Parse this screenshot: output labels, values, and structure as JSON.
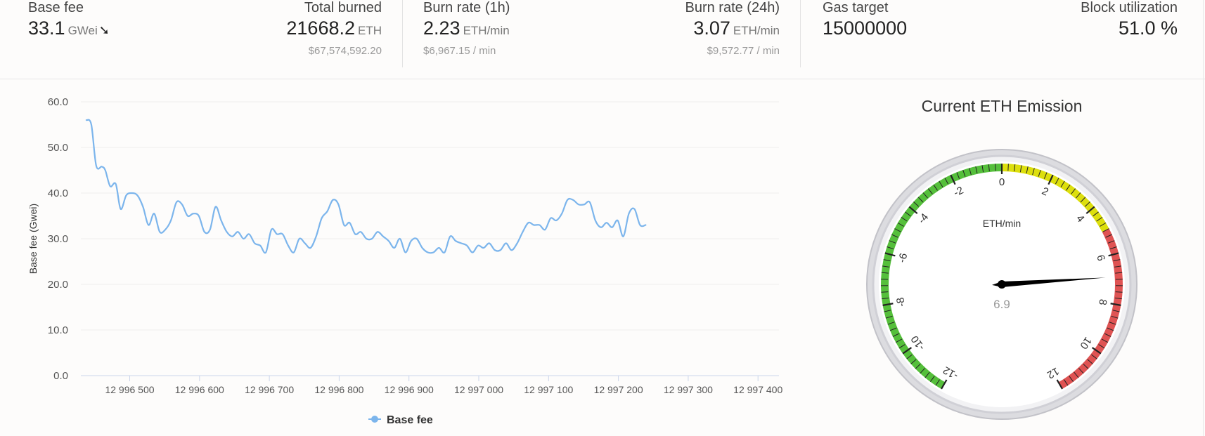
{
  "stats": {
    "base_fee": {
      "label": "Base fee",
      "value": "33.1",
      "unit": "GWei",
      "trend_icon": "arrow-down-right-icon"
    },
    "total_burned": {
      "label": "Total burned",
      "value": "21668.2",
      "unit": "ETH",
      "sub": "$67,574,592.20"
    },
    "burn_rate_1h": {
      "label": "Burn rate (1h)",
      "value": "2.23",
      "unit": "ETH/min",
      "sub": "$6,967.15 / min"
    },
    "burn_rate_24h": {
      "label": "Burn rate (24h)",
      "value": "3.07",
      "unit": "ETH/min",
      "sub": "$9,572.77 / min"
    },
    "gas_target": {
      "label": "Gas target",
      "value": "15000000"
    },
    "block_utilization": {
      "label": "Block utilization",
      "value": "51.0 %"
    }
  },
  "chart_data": [
    {
      "type": "line",
      "title": "",
      "xlabel": "",
      "ylabel": "Base fee (Gwei)",
      "ylim": [
        0,
        60
      ],
      "xlim": [
        12996430,
        12997430
      ],
      "yticks": [
        "0.0",
        "10.0",
        "20.0",
        "30.0",
        "40.0",
        "50.0",
        "60.0"
      ],
      "xticks": [
        {
          "value": 12996500,
          "label": "12 996 500"
        },
        {
          "value": 12996600,
          "label": "12 996 600"
        },
        {
          "value": 12996700,
          "label": "12 996 700"
        },
        {
          "value": 12996800,
          "label": "12 996 800"
        },
        {
          "value": 12996900,
          "label": "12 996 900"
        },
        {
          "value": 12997000,
          "label": "12 997 000"
        },
        {
          "value": 12997100,
          "label": "12 997 100"
        },
        {
          "value": 12997200,
          "label": "12 997 200"
        },
        {
          "value": 12997300,
          "label": "12 997 300"
        },
        {
          "value": 12997400,
          "label": "12 997 400"
        }
      ],
      "grid": true,
      "legend": "bottom",
      "color": "#7cb5ec",
      "series": [
        {
          "name": "Base fee",
          "points": [
            [
              12996438,
              56.0
            ],
            [
              12996445,
              55.0
            ],
            [
              12996452,
              46.0
            ],
            [
              12996460,
              45.8
            ],
            [
              12996465,
              45.0
            ],
            [
              12996472,
              41.5
            ],
            [
              12996480,
              42.0
            ],
            [
              12996487,
              36.5
            ],
            [
              12996495,
              39.5
            ],
            [
              12996503,
              40.0
            ],
            [
              12996511,
              39.5
            ],
            [
              12996519,
              37.0
            ],
            [
              12996527,
              33.0
            ],
            [
              12996535,
              35.5
            ],
            [
              12996543,
              31.5
            ],
            [
              12996551,
              32.0
            ],
            [
              12996559,
              34.0
            ],
            [
              12996567,
              38.0
            ],
            [
              12996575,
              37.5
            ],
            [
              12996583,
              35.0
            ],
            [
              12996591,
              35.5
            ],
            [
              12996599,
              35.0
            ],
            [
              12996607,
              31.5
            ],
            [
              12996615,
              32.0
            ],
            [
              12996623,
              37.0
            ],
            [
              12996631,
              34.0
            ],
            [
              12996639,
              31.5
            ],
            [
              12996647,
              30.5
            ],
            [
              12996655,
              31.5
            ],
            [
              12996663,
              30.0
            ],
            [
              12996671,
              31.0
            ],
            [
              12996679,
              29.0
            ],
            [
              12996687,
              28.5
            ],
            [
              12996695,
              27.0
            ],
            [
              12996703,
              32.0
            ],
            [
              12996711,
              31.0
            ],
            [
              12996719,
              31.0
            ],
            [
              12996727,
              28.5
            ],
            [
              12996735,
              27.0
            ],
            [
              12996743,
              30.0
            ],
            [
              12996751,
              29.0
            ],
            [
              12996759,
              28.0
            ],
            [
              12996767,
              30.5
            ],
            [
              12996775,
              34.5
            ],
            [
              12996783,
              36.0
            ],
            [
              12996791,
              38.5
            ],
            [
              12996799,
              37.5
            ],
            [
              12996807,
              33.0
            ],
            [
              12996815,
              33.5
            ],
            [
              12996823,
              31.0
            ],
            [
              12996831,
              31.5
            ],
            [
              12996839,
              30.0
            ],
            [
              12996847,
              30.0
            ],
            [
              12996855,
              31.5
            ],
            [
              12996863,
              30.5
            ],
            [
              12996871,
              29.5
            ],
            [
              12996879,
              28.0
            ],
            [
              12996887,
              30.0
            ],
            [
              12996895,
              27.0
            ],
            [
              12996903,
              29.5
            ],
            [
              12996911,
              30.0
            ],
            [
              12996919,
              28.0
            ],
            [
              12996927,
              27.0
            ],
            [
              12996935,
              27.0
            ],
            [
              12996943,
              28.0
            ],
            [
              12996951,
              27.0
            ],
            [
              12996959,
              30.5
            ],
            [
              12996967,
              29.5
            ],
            [
              12996975,
              29.0
            ],
            [
              12996983,
              28.5
            ],
            [
              12996991,
              27.0
            ],
            [
              12996999,
              28.5
            ],
            [
              12997007,
              28.0
            ],
            [
              12997015,
              29.0
            ],
            [
              12997023,
              27.5
            ],
            [
              12997031,
              27.5
            ],
            [
              12997039,
              29.0
            ],
            [
              12997047,
              27.5
            ],
            [
              12997055,
              29.0
            ],
            [
              12997063,
              31.5
            ],
            [
              12997071,
              33.5
            ],
            [
              12997079,
              33.0
            ],
            [
              12997087,
              33.0
            ],
            [
              12997095,
              32.0
            ],
            [
              12997103,
              34.5
            ],
            [
              12997111,
              34.0
            ],
            [
              12997119,
              35.5
            ],
            [
              12997127,
              38.5
            ],
            [
              12997135,
              38.5
            ],
            [
              12997143,
              37.5
            ],
            [
              12997151,
              37.5
            ],
            [
              12997159,
              38.0
            ],
            [
              12997167,
              34.0
            ],
            [
              12997175,
              32.5
            ],
            [
              12997183,
              33.5
            ],
            [
              12997191,
              32.5
            ],
            [
              12997199,
              34.0
            ],
            [
              12997207,
              30.5
            ],
            [
              12997215,
              35.5
            ],
            [
              12997223,
              36.5
            ],
            [
              12997231,
              33.0
            ],
            [
              12997239,
              33.0
            ]
          ]
        }
      ]
    },
    {
      "type": "gauge",
      "title": "Current ETH Emission",
      "unit_label": "ETH/min",
      "value": 6.9,
      "value_label": "6.9",
      "range": [
        -12,
        12
      ],
      "tick_labels": [
        {
          "value": -12,
          "label": "-12"
        },
        {
          "value": -10,
          "label": "-10"
        },
        {
          "value": -8,
          "label": "-8"
        },
        {
          "value": -6,
          "label": "-6"
        },
        {
          "value": -4,
          "label": "-4"
        },
        {
          "value": -2,
          "label": "-2"
        },
        {
          "value": 0,
          "label": "0"
        },
        {
          "value": 2,
          "label": "2"
        },
        {
          "value": 4,
          "label": "4"
        },
        {
          "value": 6,
          "label": "6"
        },
        {
          "value": 8,
          "label": "8"
        },
        {
          "value": 10,
          "label": "10"
        },
        {
          "value": 12,
          "label": "12"
        }
      ],
      "bands": [
        {
          "from": -12,
          "to": 0,
          "color": "#55bf3b"
        },
        {
          "from": 0,
          "to": 5,
          "color": "#dddf0d"
        },
        {
          "from": 5,
          "to": 12,
          "color": "#df5353"
        }
      ]
    }
  ]
}
